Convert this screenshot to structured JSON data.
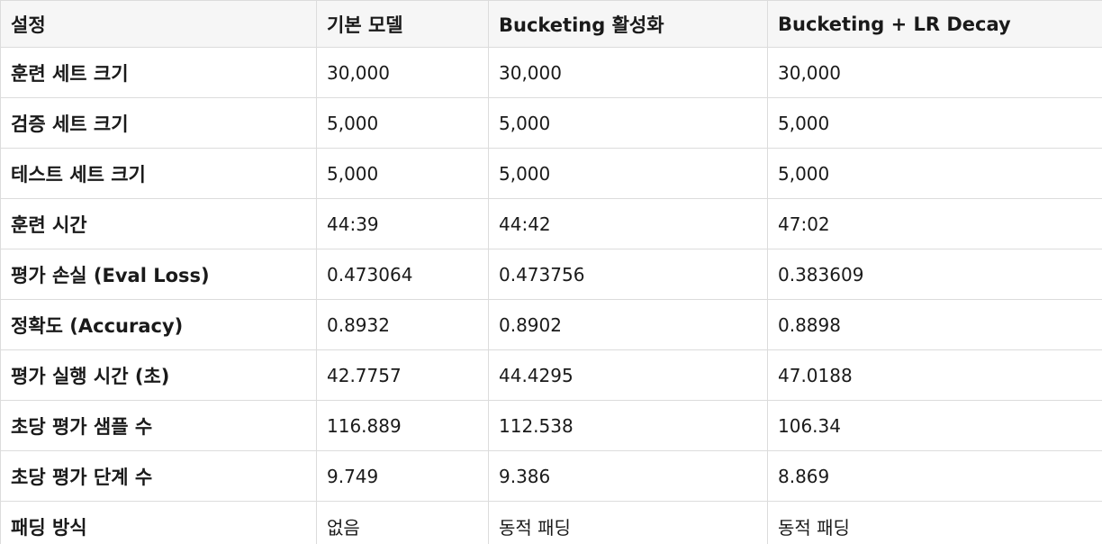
{
  "table": {
    "headers": [
      "설정",
      "기본 모델",
      "Bucketing 활성화",
      "Bucketing + LR Decay"
    ],
    "rows": [
      [
        "훈련 세트 크기",
        "30,000",
        "30,000",
        "30,000"
      ],
      [
        "검증 세트 크기",
        "5,000",
        "5,000",
        "5,000"
      ],
      [
        "테스트 세트 크기",
        "5,000",
        "5,000",
        "5,000"
      ],
      [
        "훈련 시간",
        "44:39",
        "44:42",
        "47:02"
      ],
      [
        "평가 손실 (Eval Loss)",
        "0.473064",
        "0.473756",
        "0.383609"
      ],
      [
        "정확도 (Accuracy)",
        "0.8932",
        "0.8902",
        "0.8898"
      ],
      [
        "평가 실행 시간 (초)",
        "42.7757",
        "44.4295",
        "47.0188"
      ],
      [
        "초당 평가 샘플 수",
        "116.889",
        "112.538",
        "106.34"
      ],
      [
        "초당 평가 단계 수",
        "9.749",
        "9.386",
        "8.869"
      ],
      [
        "패딩 방식",
        "없음",
        "동적 패딩",
        "동적 패딩"
      ]
    ]
  }
}
